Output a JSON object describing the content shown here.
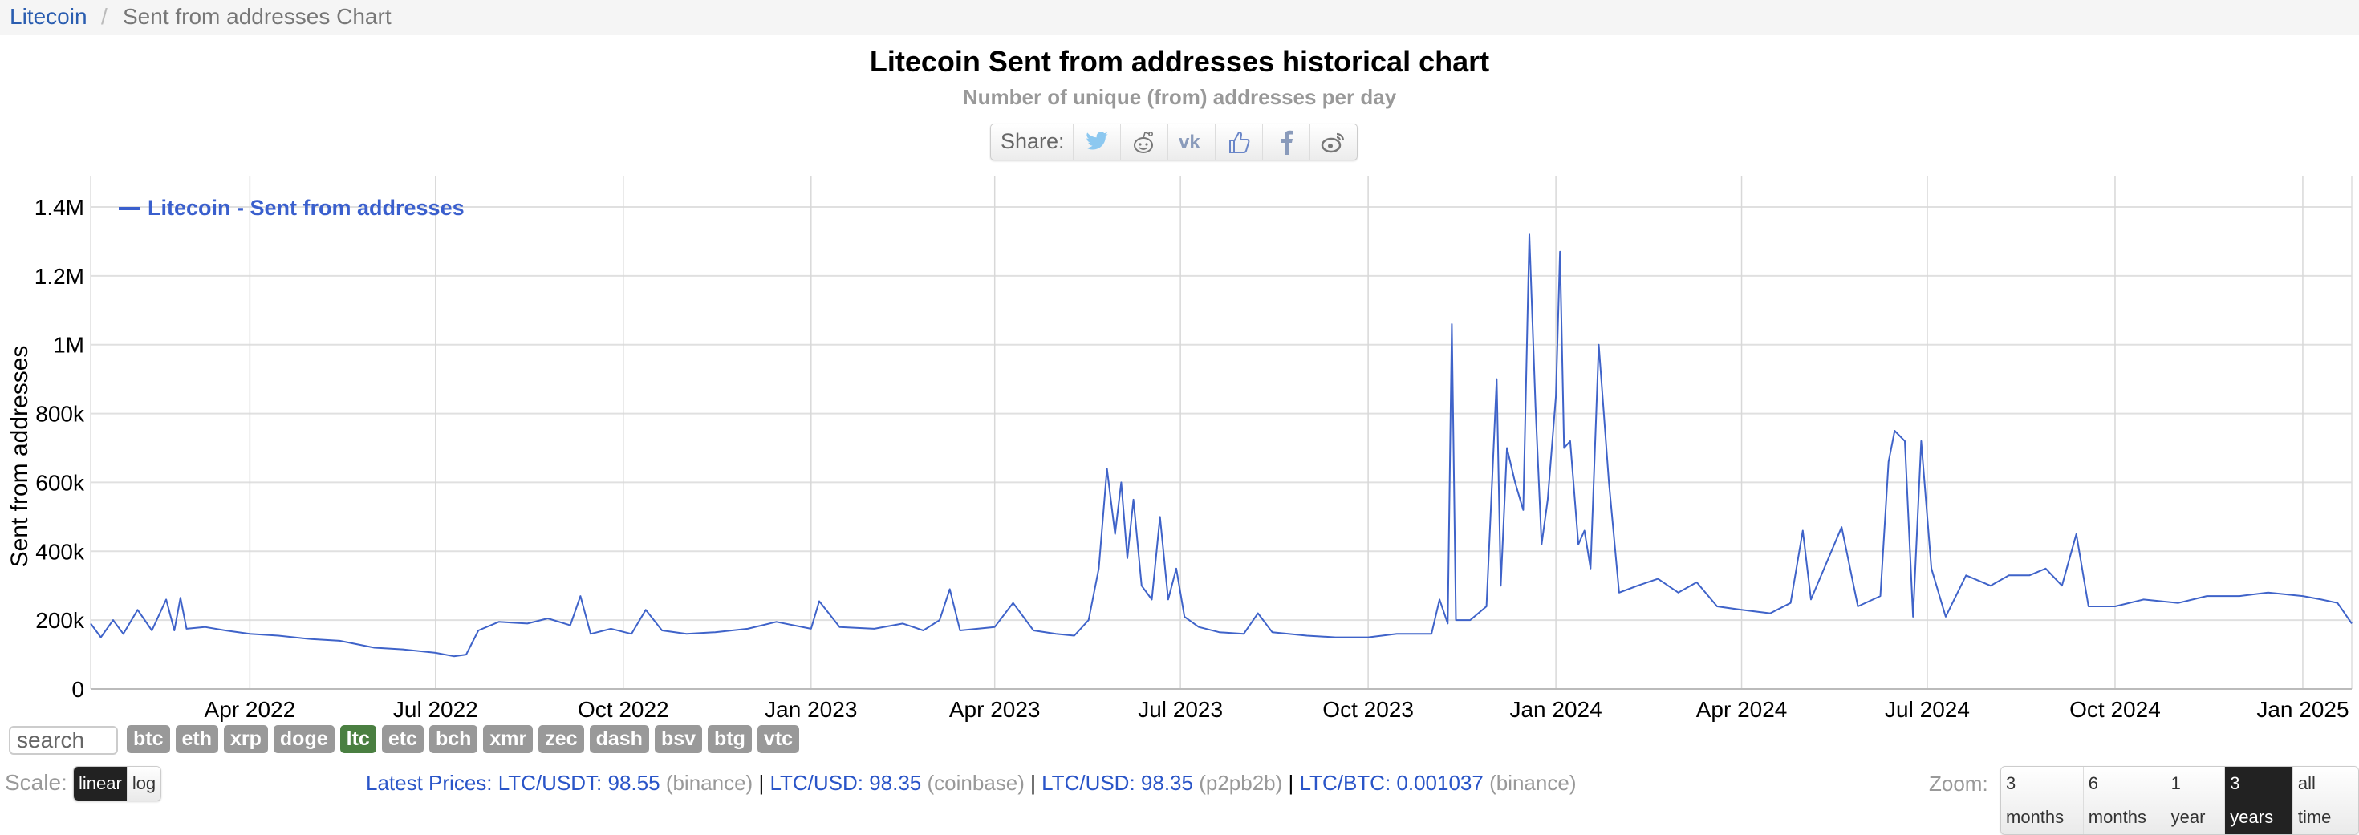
{
  "breadcrumb": {
    "root": "Litecoin",
    "separator": "/",
    "current": "Sent from addresses Chart"
  },
  "header": {
    "title": "Litecoin Sent from addresses historical chart",
    "subtitle": "Number of unique (from) addresses per day"
  },
  "share": {
    "label": "Share:",
    "icons": [
      "twitter-icon",
      "reddit-icon",
      "vk-icon",
      "like-icon",
      "facebook-icon",
      "weibo-icon"
    ]
  },
  "colors": {
    "line": "#3f63c9",
    "legend": "#3a5fcd",
    "active_coin": "#4a7f41",
    "coin": "#999999",
    "link": "#2a55c8"
  },
  "search": {
    "placeholder": "search"
  },
  "coins": [
    {
      "label": "btc"
    },
    {
      "label": "eth"
    },
    {
      "label": "xrp"
    },
    {
      "label": "doge"
    },
    {
      "label": "ltc",
      "active": true
    },
    {
      "label": "etc"
    },
    {
      "label": "bch"
    },
    {
      "label": "xmr"
    },
    {
      "label": "zec"
    },
    {
      "label": "dash"
    },
    {
      "label": "bsv"
    },
    {
      "label": "btg"
    },
    {
      "label": "vtc"
    }
  ],
  "scale": {
    "label": "Scale:",
    "options": [
      "linear",
      "log"
    ],
    "selected": "linear"
  },
  "prices": {
    "label": "Latest Prices:",
    "items": [
      {
        "pair": "LTC/USDT: 98.55",
        "source": "(binance)"
      },
      {
        "pair": "LTC/USD: 98.35",
        "source": "(coinbase)"
      },
      {
        "pair": "LTC/USD: 98.35",
        "source": "(p2pb2b)"
      },
      {
        "pair": "LTC/BTC: 0.001037",
        "source": "(binance)"
      }
    ],
    "separator": "|"
  },
  "zoom": {
    "label": "Zoom:",
    "options": [
      "3 months",
      "6 months",
      "1 year",
      "3 years",
      "all time"
    ],
    "selected": "3 years"
  },
  "chart_data": {
    "type": "line",
    "title": "Litecoin Sent from addresses historical chart",
    "subtitle": "Number of unique (from) addresses per day",
    "ylabel": "Sent from addresses",
    "xlabel": "",
    "ylim": [
      0,
      1400000
    ],
    "xlim": [
      "2022-01-13",
      "2025-01-25"
    ],
    "grid": true,
    "legend_placement": "top-left",
    "y_ticks": [
      {
        "value": 0,
        "label": "0"
      },
      {
        "value": 200000,
        "label": "200k"
      },
      {
        "value": 400000,
        "label": "400k"
      },
      {
        "value": 600000,
        "label": "600k"
      },
      {
        "value": 800000,
        "label": "800k"
      },
      {
        "value": 1000000,
        "label": "1M"
      },
      {
        "value": 1200000,
        "label": "1.2M"
      },
      {
        "value": 1400000,
        "label": "1.4M"
      }
    ],
    "x_ticks": [
      {
        "date": "2022-04-01",
        "label": "Apr 2022"
      },
      {
        "date": "2022-07-01",
        "label": "Jul 2022"
      },
      {
        "date": "2022-10-01",
        "label": "Oct 2022"
      },
      {
        "date": "2023-01-01",
        "label": "Jan 2023"
      },
      {
        "date": "2023-04-01",
        "label": "Apr 2023"
      },
      {
        "date": "2023-07-01",
        "label": "Jul 2023"
      },
      {
        "date": "2023-10-01",
        "label": "Oct 2023"
      },
      {
        "date": "2024-01-01",
        "label": "Jan 2024"
      },
      {
        "date": "2024-04-01",
        "label": "Apr 2024"
      },
      {
        "date": "2024-07-01",
        "label": "Jul 2024"
      },
      {
        "date": "2024-10-01",
        "label": "Oct 2024"
      },
      {
        "date": "2025-01-01",
        "label": "Jan 2025"
      }
    ],
    "series": [
      {
        "name": "Litecoin - Sent from addresses",
        "points": [
          [
            "2022-01-13",
            190000
          ],
          [
            "2022-01-18",
            150000
          ],
          [
            "2022-01-24",
            200000
          ],
          [
            "2022-01-29",
            160000
          ],
          [
            "2022-02-05",
            230000
          ],
          [
            "2022-02-12",
            170000
          ],
          [
            "2022-02-19",
            260000
          ],
          [
            "2022-02-23",
            170000
          ],
          [
            "2022-02-26",
            265000
          ],
          [
            "2022-03-01",
            175000
          ],
          [
            "2022-03-10",
            180000
          ],
          [
            "2022-03-20",
            170000
          ],
          [
            "2022-04-01",
            160000
          ],
          [
            "2022-04-15",
            155000
          ],
          [
            "2022-05-01",
            145000
          ],
          [
            "2022-05-15",
            140000
          ],
          [
            "2022-06-01",
            120000
          ],
          [
            "2022-06-15",
            115000
          ],
          [
            "2022-07-01",
            105000
          ],
          [
            "2022-07-10",
            95000
          ],
          [
            "2022-07-16",
            100000
          ],
          [
            "2022-07-22",
            170000
          ],
          [
            "2022-08-01",
            195000
          ],
          [
            "2022-08-15",
            190000
          ],
          [
            "2022-08-25",
            205000
          ],
          [
            "2022-09-05",
            185000
          ],
          [
            "2022-09-10",
            270000
          ],
          [
            "2022-09-15",
            160000
          ],
          [
            "2022-09-25",
            175000
          ],
          [
            "2022-10-05",
            160000
          ],
          [
            "2022-10-12",
            230000
          ],
          [
            "2022-10-20",
            170000
          ],
          [
            "2022-11-01",
            160000
          ],
          [
            "2022-11-15",
            165000
          ],
          [
            "2022-12-01",
            175000
          ],
          [
            "2022-12-15",
            195000
          ],
          [
            "2023-01-01",
            175000
          ],
          [
            "2023-01-05",
            255000
          ],
          [
            "2023-01-15",
            180000
          ],
          [
            "2023-02-01",
            175000
          ],
          [
            "2023-02-15",
            190000
          ],
          [
            "2023-02-25",
            170000
          ],
          [
            "2023-03-05",
            200000
          ],
          [
            "2023-03-10",
            290000
          ],
          [
            "2023-03-15",
            170000
          ],
          [
            "2023-04-01",
            180000
          ],
          [
            "2023-04-10",
            250000
          ],
          [
            "2023-04-20",
            170000
          ],
          [
            "2023-05-01",
            160000
          ],
          [
            "2023-05-10",
            155000
          ],
          [
            "2023-05-17",
            200000
          ],
          [
            "2023-05-22",
            350000
          ],
          [
            "2023-05-26",
            640000
          ],
          [
            "2023-05-30",
            450000
          ],
          [
            "2023-06-02",
            600000
          ],
          [
            "2023-06-05",
            380000
          ],
          [
            "2023-06-08",
            550000
          ],
          [
            "2023-06-12",
            300000
          ],
          [
            "2023-06-17",
            260000
          ],
          [
            "2023-06-21",
            500000
          ],
          [
            "2023-06-25",
            260000
          ],
          [
            "2023-06-29",
            350000
          ],
          [
            "2023-07-03",
            210000
          ],
          [
            "2023-07-10",
            180000
          ],
          [
            "2023-07-20",
            165000
          ],
          [
            "2023-08-01",
            160000
          ],
          [
            "2023-08-08",
            220000
          ],
          [
            "2023-08-15",
            165000
          ],
          [
            "2023-09-01",
            155000
          ],
          [
            "2023-09-15",
            150000
          ],
          [
            "2023-10-01",
            150000
          ],
          [
            "2023-10-15",
            160000
          ],
          [
            "2023-11-01",
            160000
          ],
          [
            "2023-11-05",
            260000
          ],
          [
            "2023-11-09",
            190000
          ],
          [
            "2023-11-11",
            1060000
          ],
          [
            "2023-11-13",
            200000
          ],
          [
            "2023-11-20",
            200000
          ],
          [
            "2023-11-28",
            240000
          ],
          [
            "2023-12-03",
            900000
          ],
          [
            "2023-12-05",
            300000
          ],
          [
            "2023-12-08",
            700000
          ],
          [
            "2023-12-12",
            600000
          ],
          [
            "2023-12-16",
            520000
          ],
          [
            "2023-12-19",
            1320000
          ],
          [
            "2023-12-22",
            820000
          ],
          [
            "2023-12-25",
            420000
          ],
          [
            "2023-12-28",
            550000
          ],
          [
            "2024-01-01",
            850000
          ],
          [
            "2024-01-03",
            1270000
          ],
          [
            "2024-01-05",
            700000
          ],
          [
            "2024-01-08",
            720000
          ],
          [
            "2024-01-12",
            420000
          ],
          [
            "2024-01-15",
            460000
          ],
          [
            "2024-01-18",
            350000
          ],
          [
            "2024-01-22",
            1000000
          ],
          [
            "2024-01-27",
            600000
          ],
          [
            "2024-02-01",
            280000
          ],
          [
            "2024-02-10",
            300000
          ],
          [
            "2024-02-20",
            320000
          ],
          [
            "2024-03-01",
            280000
          ],
          [
            "2024-03-10",
            310000
          ],
          [
            "2024-03-20",
            240000
          ],
          [
            "2024-04-01",
            230000
          ],
          [
            "2024-04-15",
            220000
          ],
          [
            "2024-04-25",
            250000
          ],
          [
            "2024-05-01",
            460000
          ],
          [
            "2024-05-05",
            260000
          ],
          [
            "2024-05-20",
            470000
          ],
          [
            "2024-05-28",
            240000
          ],
          [
            "2024-06-08",
            270000
          ],
          [
            "2024-06-12",
            660000
          ],
          [
            "2024-06-15",
            750000
          ],
          [
            "2024-06-20",
            720000
          ],
          [
            "2024-06-24",
            210000
          ],
          [
            "2024-06-28",
            720000
          ],
          [
            "2024-07-03",
            350000
          ],
          [
            "2024-07-10",
            210000
          ],
          [
            "2024-07-20",
            330000
          ],
          [
            "2024-08-01",
            300000
          ],
          [
            "2024-08-10",
            330000
          ],
          [
            "2024-08-20",
            330000
          ],
          [
            "2024-08-28",
            350000
          ],
          [
            "2024-09-05",
            300000
          ],
          [
            "2024-09-12",
            450000
          ],
          [
            "2024-09-18",
            240000
          ],
          [
            "2024-10-01",
            240000
          ],
          [
            "2024-10-15",
            260000
          ],
          [
            "2024-11-01",
            250000
          ],
          [
            "2024-11-15",
            270000
          ],
          [
            "2024-12-01",
            270000
          ],
          [
            "2024-12-15",
            280000
          ],
          [
            "2025-01-01",
            270000
          ],
          [
            "2025-01-10",
            260000
          ],
          [
            "2025-01-18",
            250000
          ],
          [
            "2025-01-25",
            190000
          ]
        ]
      }
    ]
  }
}
